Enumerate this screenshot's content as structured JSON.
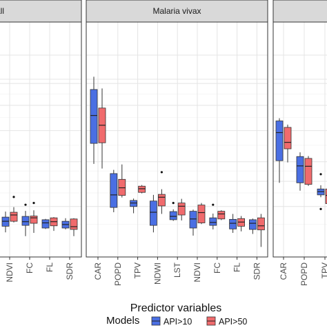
{
  "chart_data": {
    "type": "boxplot",
    "panels": [
      {
        "strip_label": "all",
        "categories": [
          "NDVI",
          "FC",
          "FL",
          "SDR"
        ],
        "boxes": {
          "API>10": [
            {
              "min": 0.032,
              "q1": 0.045,
              "median": 0.057,
              "q3": 0.068,
              "max": 0.084,
              "outliers": []
            },
            {
              "min": 0.025,
              "q1": 0.047,
              "median": 0.056,
              "q3": 0.07,
              "max": 0.086,
              "outliers": [
                0.106
              ]
            },
            {
              "min": 0.039,
              "q1": 0.041,
              "median": 0.053,
              "q3": 0.061,
              "max": 0.063,
              "outliers": []
            },
            {
              "min": 0.038,
              "q1": 0.041,
              "median": 0.049,
              "q3": 0.057,
              "max": 0.065,
              "outliers": []
            }
          ],
          "API>50": [
            {
              "min": 0.054,
              "q1": 0.057,
              "median": 0.074,
              "q3": 0.082,
              "max": 0.098,
              "outliers": [
                0.134
              ]
            },
            {
              "min": 0.031,
              "q1": 0.052,
              "median": 0.066,
              "q3": 0.071,
              "max": 0.088,
              "outliers": [
                0.112
              ]
            },
            {
              "min": 0.035,
              "q1": 0.046,
              "median": 0.056,
              "q3": 0.066,
              "max": 0.068,
              "outliers": []
            },
            {
              "min": 0.025,
              "q1": 0.038,
              "median": 0.044,
              "q3": 0.063,
              "max": 0.065,
              "outliers": []
            }
          ]
        }
      },
      {
        "strip_label": "Malaria vivax",
        "categories": [
          "CAR",
          "POPD",
          "TPV",
          "NDWI",
          "LST",
          "NDVI",
          "FC",
          "FL",
          "SDR"
        ],
        "boxes": {
          "API>10": [
            {
              "min": 0.288,
              "q1": 0.412,
              "median": 0.616,
              "q3": 0.842,
              "max": 0.966,
              "outliers": []
            },
            {
              "min": 0.082,
              "q1": 0.097,
              "median": 0.142,
              "q3": 0.237,
              "max": 0.256,
              "outliers": []
            },
            {
              "min": 0.079,
              "q1": 0.1,
              "median": 0.112,
              "q3": 0.121,
              "max": 0.128,
              "outliers": []
            },
            {
              "min": 0.032,
              "q1": 0.047,
              "median": 0.082,
              "q3": 0.119,
              "max": 0.142,
              "outliers": []
            },
            {
              "min": 0.058,
              "q1": 0.061,
              "median": 0.07,
              "q3": 0.084,
              "max": 0.091,
              "outliers": [
                0.112
              ]
            },
            {
              "min": 0.026,
              "q1": 0.041,
              "median": 0.063,
              "q3": 0.085,
              "max": 0.09,
              "outliers": []
            },
            {
              "min": 0.038,
              "q1": 0.047,
              "median": 0.054,
              "q3": 0.066,
              "max": 0.078,
              "outliers": [
                0.106
              ]
            },
            {
              "min": 0.031,
              "q1": 0.039,
              "median": 0.052,
              "q3": 0.062,
              "max": 0.077,
              "outliers": []
            },
            {
              "min": 0.029,
              "q1": 0.038,
              "median": 0.052,
              "q3": 0.061,
              "max": 0.064,
              "outliers": []
            }
          ],
          "API>50": [
            {
              "min": 0.263,
              "q1": 0.416,
              "median": 0.54,
              "q3": 0.677,
              "max": 0.852,
              "outliers": []
            },
            {
              "min": 0.132,
              "q1": 0.14,
              "median": 0.171,
              "q3": 0.209,
              "max": 0.285,
              "outliers": []
            },
            {
              "min": 0.148,
              "q1": 0.152,
              "median": 0.167,
              "q3": 0.178,
              "max": 0.183,
              "outliers": []
            },
            {
              "min": 0.077,
              "q1": 0.102,
              "median": 0.133,
              "q3": 0.144,
              "max": 0.165,
              "outliers": [
                0.244
              ]
            },
            {
              "min": 0.059,
              "q1": 0.074,
              "median": 0.101,
              "q3": 0.112,
              "max": 0.127,
              "outliers": []
            },
            {
              "min": 0.05,
              "q1": 0.053,
              "median": 0.081,
              "q3": 0.105,
              "max": 0.112,
              "outliers": []
            },
            {
              "min": 0.06,
              "q1": 0.063,
              "median": 0.077,
              "q3": 0.085,
              "max": 0.088,
              "outliers": []
            },
            {
              "min": 0.034,
              "q1": 0.045,
              "median": 0.055,
              "q3": 0.064,
              "max": 0.071,
              "outliers": []
            },
            {
              "min": 0.009,
              "q1": 0.037,
              "median": 0.046,
              "q3": 0.066,
              "max": 0.077,
              "outliers": []
            }
          ]
        }
      },
      {
        "strip_label": "",
        "categories": [
          "CAR",
          "POPD",
          "TPV"
        ],
        "boxes": {
          "API>10": [
            {
              "min": 0.193,
              "q1": 0.306,
              "median": 0.486,
              "q3": 0.573,
              "max": 0.594,
              "outliers": []
            },
            {
              "min": 0.159,
              "q1": 0.193,
              "median": 0.277,
              "q3": 0.33,
              "max": 0.355,
              "outliers": []
            },
            {
              "min": 0.133,
              "q1": 0.142,
              "median": 0.155,
              "q3": 0.166,
              "max": 0.182,
              "outliers": [
                0.092,
                0.234
              ]
            }
          ],
          "API>50": [
            {
              "min": 0.296,
              "q1": 0.377,
              "median": 0.419,
              "q3": 0.524,
              "max": 0.545,
              "outliers": []
            },
            {
              "min": 0.179,
              "q1": 0.186,
              "median": 0.275,
              "q3": 0.319,
              "max": 0.333,
              "outliers": []
            },
            {
              "min": 0.072,
              "q1": 0.11,
              "median": 0.14,
              "q3": 0.166,
              "max": 0.178,
              "outliers": []
            }
          ]
        }
      }
    ],
    "xlabel": "Predictor variables",
    "ylabel": "",
    "legend": {
      "title": "Models",
      "position": "bottom",
      "entries": [
        "API>10",
        "API>50"
      ]
    },
    "colors": {
      "API>10": "#4a6fe3",
      "API>50": "#f06b6d"
    },
    "grid": true,
    "y_scale": "sqrt"
  }
}
